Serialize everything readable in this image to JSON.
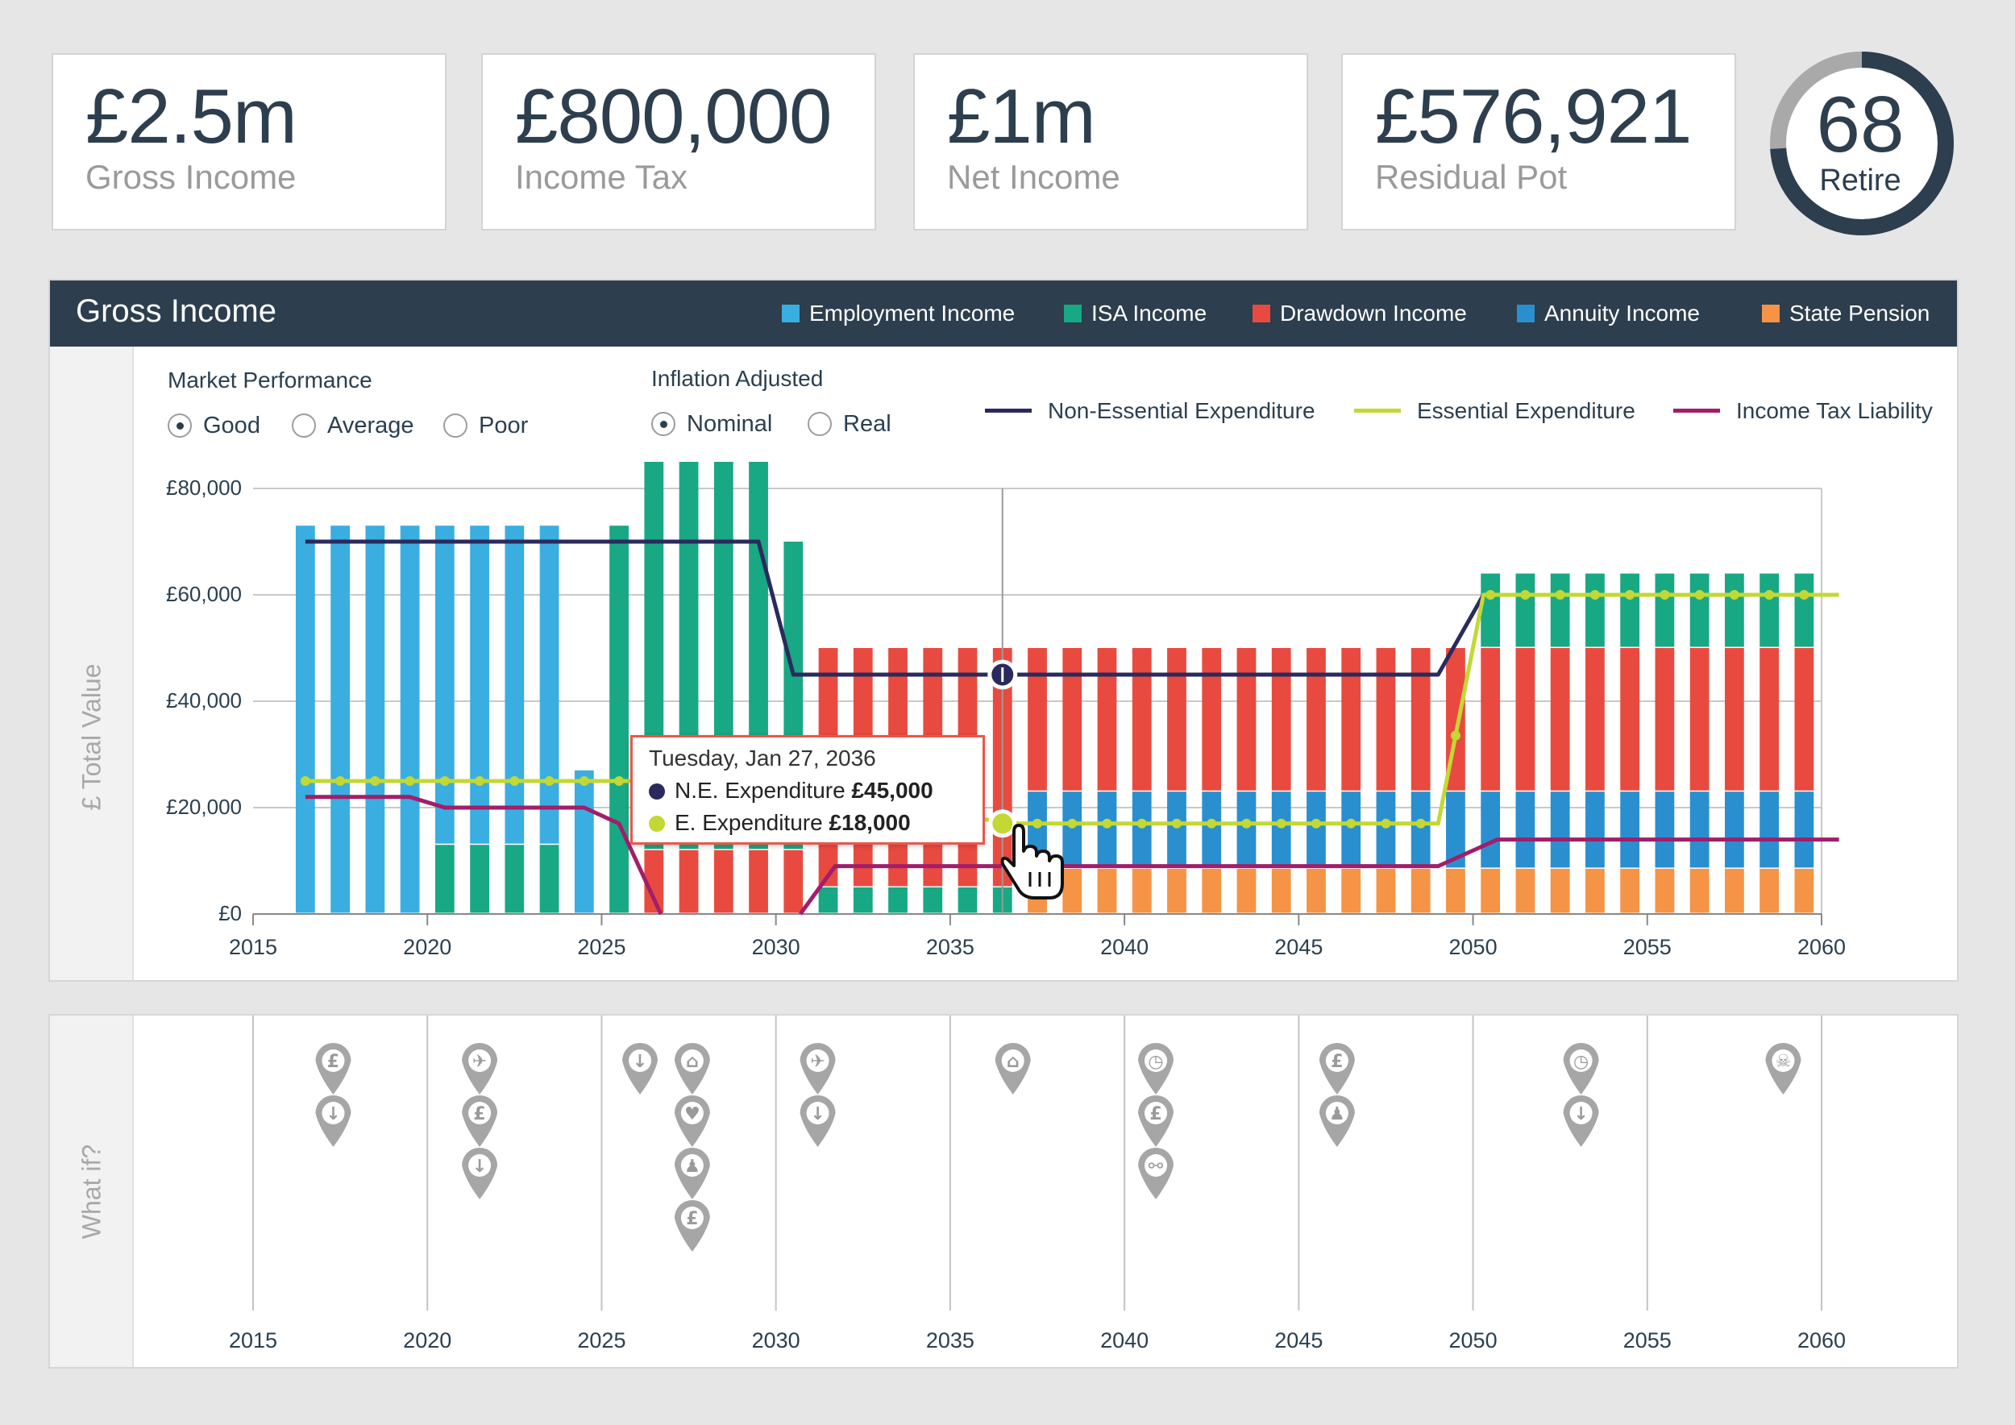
{
  "summary": [
    {
      "value": "£2.5m",
      "label": "Gross Income"
    },
    {
      "value": "£800,000",
      "label": "Income Tax"
    },
    {
      "value": "£1m",
      "label": "Net Income"
    },
    {
      "value": "£576,921",
      "label": "Residual Pot"
    }
  ],
  "retire": {
    "age": "68",
    "label": "Retire",
    "progress": 0.74
  },
  "gross_panel": {
    "title": "Gross Income",
    "legend": [
      {
        "label": "Employment Income",
        "color": "#3aaee0"
      },
      {
        "label": "ISA Income",
        "color": "#18a884"
      },
      {
        "label": "Drawdown Income",
        "color": "#e94a3f"
      },
      {
        "label": "Annuity Income",
        "color": "#2a8fcf"
      },
      {
        "label": "State Pension",
        "color": "#f59346"
      }
    ]
  },
  "controls": {
    "market": {
      "title": "Market Performance",
      "options": [
        "Good",
        "Average",
        "Poor"
      ],
      "selected": "Good"
    },
    "inflation": {
      "title": "Inflation Adjusted",
      "options": [
        "Nominal",
        "Real"
      ],
      "selected": "Nominal"
    }
  },
  "line_legend": [
    {
      "label": "Non-Essential Expenditure",
      "color": "#2a2a5e"
    },
    {
      "label": "Essential Expenditure",
      "color": "#c3d834"
    },
    {
      "label": "Income Tax Liability",
      "color": "#a11e6a"
    }
  ],
  "y_axis_label": "£ Total Value",
  "tooltip": {
    "date": "Tuesday, Jan 27, 2036",
    "rows": [
      {
        "label": "N.E. Expenditure",
        "value": "£45,000",
        "color": "#2a2a5e"
      },
      {
        "label": "E. Expenditure",
        "value": "£18,000",
        "color": "#c3d834"
      }
    ]
  },
  "whatif": {
    "label": "What if?",
    "years": [
      "2015",
      "2020",
      "2025",
      "2030",
      "2035",
      "2040",
      "2045",
      "2050",
      "2055",
      "2060"
    ],
    "pins": [
      {
        "year": 2017.3,
        "icons": [
          "pound-icon",
          "download-icon"
        ]
      },
      {
        "year": 2021.5,
        "icons": [
          "plane-icon",
          "pound-icon",
          "download-icon"
        ]
      },
      {
        "year": 2026.1,
        "icons": [
          "download-icon"
        ]
      },
      {
        "year": 2027.6,
        "icons": [
          "home-icon",
          "heart-icon",
          "person-icon",
          "pound-icon"
        ]
      },
      {
        "year": 2031.2,
        "icons": [
          "plane-icon",
          "download-icon"
        ]
      },
      {
        "year": 2036.8,
        "icons": [
          "home-icon"
        ]
      },
      {
        "year": 2040.9,
        "icons": [
          "clock-icon",
          "pound-icon",
          "broken-link-icon"
        ]
      },
      {
        "year": 2046.1,
        "icons": [
          "pound-icon",
          "person-icon"
        ]
      },
      {
        "year": 2053.1,
        "icons": [
          "clock-icon",
          "download-icon"
        ]
      },
      {
        "year": 2058.9,
        "icons": [
          "skull-icon"
        ]
      }
    ]
  },
  "chart_data": {
    "type": "bar",
    "stacked": true,
    "x": [
      2016,
      2017,
      2018,
      2019,
      2020,
      2021,
      2022,
      2023,
      2024,
      2025,
      2026,
      2027,
      2028,
      2029,
      2030,
      2031,
      2032,
      2033,
      2034,
      2035,
      2036,
      2037,
      2038,
      2039,
      2040,
      2041,
      2042,
      2043,
      2044,
      2045,
      2046,
      2047,
      2048,
      2049,
      2050,
      2051,
      2052,
      2053,
      2054,
      2055,
      2056,
      2057,
      2058,
      2059
    ],
    "xlim": [
      2015,
      2060
    ],
    "ylim": [
      0,
      80000
    ],
    "yticks": [
      "£0",
      "£20,000",
      "£40,000",
      "£60,000",
      "£80,000"
    ],
    "xticks": [
      "2015",
      "2020",
      "2025",
      "2030",
      "2035",
      "2040",
      "2045",
      "2050",
      "2055",
      "2060"
    ],
    "series": [
      {
        "name": "State Pension",
        "values": [
          0,
          0,
          0,
          0,
          0,
          0,
          0,
          0,
          0,
          0,
          0,
          0,
          0,
          0,
          0,
          0,
          0,
          0,
          0,
          0,
          0,
          8500,
          8500,
          8500,
          8500,
          8500,
          8500,
          8500,
          8500,
          8500,
          8500,
          8500,
          8500,
          8500,
          8500,
          8500,
          8500,
          8500,
          8500,
          8500,
          8500,
          8500,
          8500,
          8500
        ]
      },
      {
        "name": "ISA Income",
        "values": [
          0,
          0,
          0,
          0,
          13000,
          13000,
          13000,
          13000,
          0,
          73000,
          73000,
          73000,
          73000,
          73000,
          58000,
          5000,
          5000,
          5000,
          5000,
          5000,
          5000,
          0,
          0,
          0,
          0,
          0,
          0,
          0,
          0,
          0,
          0,
          0,
          0,
          0,
          0,
          0,
          0,
          0,
          0,
          0,
          0,
          0,
          0,
          0
        ]
      },
      {
        "name": "Annuity Income",
        "values": [
          0,
          0,
          0,
          0,
          0,
          0,
          0,
          0,
          0,
          0,
          0,
          0,
          0,
          0,
          0,
          0,
          0,
          0,
          0,
          0,
          0,
          14500,
          14500,
          14500,
          14500,
          14500,
          14500,
          14500,
          14500,
          14500,
          14500,
          14500,
          14500,
          14500,
          14500,
          14500,
          14500,
          14500,
          14500,
          14500,
          14500,
          14500,
          14500,
          14500
        ]
      },
      {
        "name": "Employment Income",
        "values": [
          73000,
          73000,
          73000,
          73000,
          60000,
          60000,
          60000,
          60000,
          27000,
          0,
          0,
          0,
          0,
          0,
          0,
          0,
          0,
          0,
          0,
          0,
          0,
          0,
          0,
          0,
          0,
          0,
          0,
          0,
          0,
          0,
          0,
          0,
          0,
          0,
          0,
          0,
          0,
          0,
          0,
          0,
          0,
          0,
          0,
          0
        ]
      },
      {
        "name": "Drawdown Income",
        "values": [
          0,
          0,
          0,
          0,
          0,
          0,
          0,
          0,
          0,
          0,
          0,
          0,
          0,
          0,
          0,
          45000,
          45000,
          45000,
          45000,
          45000,
          45000,
          27000,
          27000,
          27000,
          27000,
          27000,
          27000,
          27000,
          27000,
          27000,
          27000,
          27000,
          27000,
          27000,
          27000,
          27000,
          27000,
          27000,
          27000,
          27000,
          27000,
          27000,
          27000,
          27000
        ]
      },
      {
        "name": "ISA Income",
        "values": [
          0,
          0,
          0,
          0,
          0,
          0,
          0,
          0,
          0,
          0,
          0,
          0,
          0,
          0,
          0,
          0,
          0,
          0,
          0,
          0,
          0,
          0,
          0,
          0,
          0,
          0,
          0,
          0,
          0,
          0,
          0,
          0,
          0,
          0,
          14000,
          14000,
          14000,
          14000,
          14000,
          14000,
          14000,
          14000,
          14000,
          14000
        ]
      }
    ],
    "drawdown_override": [
      0,
      0,
      0,
      0,
      0,
      0,
      0,
      0,
      0,
      0,
      12000,
      12000,
      12000,
      12000,
      12000,
      0,
      0,
      0,
      0,
      0,
      0,
      0,
      0,
      0,
      0,
      0,
      0,
      0,
      0,
      0,
      0,
      0,
      0,
      0,
      0,
      0,
      0,
      0,
      0,
      0,
      0,
      0,
      0,
      0
    ],
    "lines": [
      {
        "name": "Non-Essential Expenditure",
        "points": [
          [
            2016,
            70000
          ],
          [
            2029,
            70000
          ],
          [
            2030,
            45000
          ],
          [
            2048.5,
            45000
          ],
          [
            2049.8,
            60000
          ]
        ]
      },
      {
        "name": "Essential Expenditure",
        "points": [
          [
            2016,
            25000
          ],
          [
            2026,
            25000
          ],
          [
            2036.5,
            17000
          ],
          [
            2048.5,
            17000
          ],
          [
            2049.8,
            60000
          ],
          [
            2060,
            60000
          ]
        ]
      },
      {
        "name": "Income Tax Liability",
        "points": [
          [
            2016,
            22000
          ],
          [
            2019,
            22000
          ],
          [
            2020,
            20000
          ],
          [
            2024,
            20000
          ],
          [
            2025,
            17000
          ],
          [
            2026.2,
            0
          ]
        ]
      },
      {
        "name": "Income Tax Liability",
        "points": [
          [
            2030.2,
            0
          ],
          [
            2031.2,
            9000
          ],
          [
            2048.5,
            9000
          ],
          [
            2050.2,
            14000
          ],
          [
            2060,
            14000
          ]
        ]
      }
    ]
  }
}
